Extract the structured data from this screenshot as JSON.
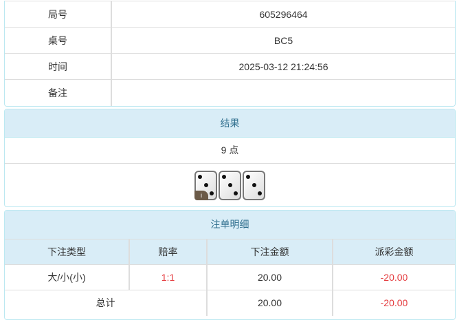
{
  "info": {
    "rows": [
      {
        "label": "局号",
        "value": "605296464"
      },
      {
        "label": "桌号",
        "value": "BC5"
      },
      {
        "label": "时间",
        "value": "2025-03-12 21:24:56"
      },
      {
        "label": "备注",
        "value": ""
      }
    ]
  },
  "result": {
    "title": "结果",
    "points": "9 点",
    "dice": [
      3,
      3,
      3
    ],
    "info_badge": "i"
  },
  "bets": {
    "title": "注单明细",
    "headers": [
      "下注类型",
      "赔率",
      "下注金额",
      "派彩金额"
    ],
    "rows": [
      {
        "type": "大/小(小)",
        "odds": "1:1",
        "amount": "20.00",
        "payout": "-20.00"
      }
    ],
    "total": {
      "label": "总计",
      "amount": "20.00",
      "payout": "-20.00"
    }
  },
  "colors": {
    "panel_header_bg": "#d9edf7",
    "panel_header_text": "#31708f",
    "border": "#bce8f1",
    "negative": "#e4393c"
  }
}
